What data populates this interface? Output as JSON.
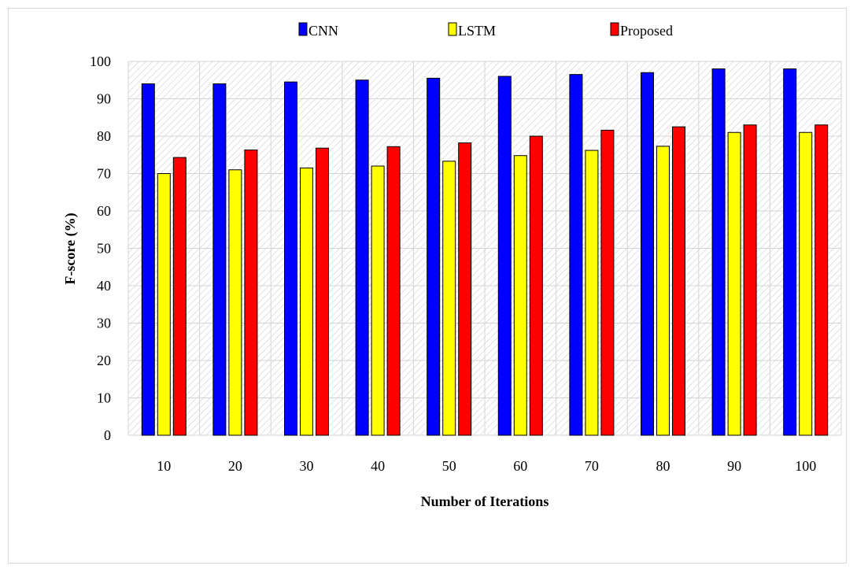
{
  "chart_data": {
    "type": "bar",
    "title": "",
    "xlabel": "Number of Iterations",
    "ylabel": "F-score (%)",
    "categories": [
      "10",
      "20",
      "30",
      "40",
      "50",
      "60",
      "70",
      "80",
      "90",
      "100"
    ],
    "ylim": [
      0,
      100
    ],
    "yticks": [
      0,
      10,
      20,
      30,
      40,
      50,
      60,
      70,
      80,
      90,
      100
    ],
    "grid": true,
    "legend_position": "top",
    "series": [
      {
        "name": "CNN",
        "color": "#0000ff",
        "values": [
          94,
          94,
          94.5,
          95,
          95.5,
          96,
          96.5,
          97,
          98,
          98
        ]
      },
      {
        "name": "LSTM",
        "color": "#ffff00",
        "values": [
          70,
          71,
          71.5,
          72,
          73.3,
          74.8,
          76.2,
          77.3,
          81,
          81
        ]
      },
      {
        "name": "Proposed",
        "color": "#ff0000",
        "values": [
          74.3,
          76.3,
          76.8,
          77.2,
          78.2,
          80,
          81.6,
          82.5,
          83,
          83
        ]
      }
    ]
  }
}
